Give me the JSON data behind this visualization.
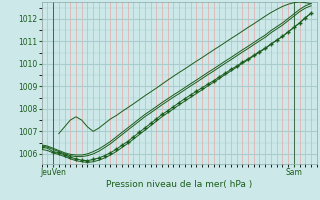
{
  "title": "Pression niveau de la mer( hPa )",
  "xlabel_left": "JeuVen",
  "xlabel_right": "Sam",
  "ylabel_ticks": [
    1006,
    1007,
    1008,
    1009,
    1010,
    1011,
    1012
  ],
  "ylim": [
    1005.55,
    1012.75
  ],
  "bg_color": "#cce8e8",
  "grid_color_major": "#aacccc",
  "grid_color_minor": "#e8aaaa",
  "line_color": "#1a5c1a",
  "marker_color": "#1a5c1a",
  "xlim": [
    0,
    48
  ],
  "xline_jeuven": 2,
  "xline_sam": 44,
  "line1_x": [
    0,
    1,
    2,
    3,
    4,
    5,
    6,
    7,
    8,
    9,
    10,
    11,
    12,
    13,
    14,
    15,
    16,
    17,
    18,
    19,
    20,
    21,
    22,
    23,
    24,
    25,
    26,
    27,
    28,
    29,
    30,
    31,
    32,
    33,
    34,
    35,
    36,
    37,
    38,
    39,
    40,
    41,
    42,
    43,
    44,
    45,
    46,
    47
  ],
  "line1_y": [
    1006.3,
    1006.25,
    1006.1,
    1006.05,
    1005.95,
    1005.85,
    1005.78,
    1005.72,
    1005.7,
    1005.75,
    1005.82,
    1005.92,
    1006.05,
    1006.2,
    1006.38,
    1006.55,
    1006.75,
    1006.95,
    1007.15,
    1007.35,
    1007.55,
    1007.75,
    1007.92,
    1008.1,
    1008.28,
    1008.46,
    1008.62,
    1008.78,
    1008.94,
    1009.1,
    1009.25,
    1009.42,
    1009.58,
    1009.75,
    1009.9,
    1010.07,
    1010.22,
    1010.38,
    1010.55,
    1010.7,
    1010.88,
    1011.05,
    1011.22,
    1011.42,
    1011.62,
    1011.82,
    1012.05,
    1012.25
  ],
  "line2_x": [
    0,
    1,
    2,
    3,
    4,
    5,
    6,
    7,
    8,
    9,
    10,
    11,
    12,
    13,
    14,
    15,
    16,
    17,
    18,
    19,
    20,
    21,
    22,
    23,
    24,
    25,
    26,
    27,
    28,
    29,
    30,
    31,
    32,
    33,
    34,
    35,
    36,
    37,
    38,
    39,
    40,
    41,
    42,
    43,
    44,
    45,
    46,
    47
  ],
  "line2_y": [
    1006.2,
    1006.15,
    1006.05,
    1005.97,
    1005.88,
    1005.78,
    1005.7,
    1005.65,
    1005.62,
    1005.65,
    1005.72,
    1005.82,
    1005.95,
    1006.1,
    1006.28,
    1006.46,
    1006.65,
    1006.85,
    1007.05,
    1007.25,
    1007.45,
    1007.65,
    1007.83,
    1008.0,
    1008.18,
    1008.35,
    1008.52,
    1008.68,
    1008.85,
    1009.02,
    1009.18,
    1009.35,
    1009.52,
    1009.68,
    1009.85,
    1010.02,
    1010.18,
    1010.35,
    1010.52,
    1010.68,
    1010.87,
    1011.05,
    1011.22,
    1011.42,
    1011.62,
    1011.82,
    1012.05,
    1012.25
  ],
  "line3_x": [
    0,
    1,
    2,
    3,
    4,
    5,
    6,
    7,
    8,
    9,
    10,
    11,
    12,
    13,
    14,
    15,
    16,
    17,
    18,
    19,
    20,
    21,
    22,
    23,
    24,
    25,
    26,
    27,
    28,
    29,
    30,
    31,
    32,
    33,
    34,
    35,
    36,
    37,
    38,
    39,
    40,
    41,
    42,
    43,
    44,
    45,
    46,
    47
  ],
  "line3_y": [
    1006.4,
    1006.35,
    1006.25,
    1006.15,
    1006.05,
    1005.98,
    1005.95,
    1005.95,
    1006.0,
    1006.1,
    1006.22,
    1006.38,
    1006.55,
    1006.75,
    1006.95,
    1007.15,
    1007.35,
    1007.55,
    1007.75,
    1007.92,
    1008.1,
    1008.28,
    1008.45,
    1008.62,
    1008.78,
    1008.95,
    1009.12,
    1009.28,
    1009.45,
    1009.62,
    1009.78,
    1009.95,
    1010.12,
    1010.28,
    1010.45,
    1010.62,
    1010.78,
    1010.95,
    1011.12,
    1011.28,
    1011.48,
    1011.65,
    1011.82,
    1012.02,
    1012.22,
    1012.42,
    1012.58,
    1012.68
  ],
  "line4_x": [
    3,
    4,
    5,
    6,
    7,
    8,
    9,
    10,
    11,
    12,
    13,
    14,
    15,
    16,
    17,
    18,
    19,
    20,
    21,
    22,
    23,
    24,
    25,
    26,
    27,
    28,
    29,
    30,
    31,
    32,
    33,
    34,
    35,
    36,
    37,
    38,
    39,
    40,
    41,
    42,
    43,
    44,
    45,
    46,
    47
  ],
  "line4_y": [
    1006.9,
    1007.2,
    1007.5,
    1007.65,
    1007.5,
    1007.2,
    1007.0,
    1007.15,
    1007.35,
    1007.55,
    1007.7,
    1007.88,
    1008.05,
    1008.22,
    1008.4,
    1008.58,
    1008.75,
    1008.92,
    1009.1,
    1009.28,
    1009.45,
    1009.62,
    1009.78,
    1009.95,
    1010.12,
    1010.28,
    1010.45,
    1010.62,
    1010.78,
    1010.95,
    1011.12,
    1011.28,
    1011.45,
    1011.62,
    1011.78,
    1011.95,
    1012.12,
    1012.28,
    1012.42,
    1012.55,
    1012.65,
    1012.72,
    1012.75,
    1012.72,
    1012.68
  ],
  "line5_x": [
    0,
    1,
    2,
    3,
    4,
    5,
    6,
    7,
    8,
    9,
    10,
    11,
    12,
    13,
    14,
    15,
    16,
    17,
    18,
    19,
    20,
    21,
    22,
    23,
    24,
    25,
    26,
    27,
    28,
    29,
    30,
    31,
    32,
    33,
    34,
    35,
    36,
    37,
    38,
    39,
    40,
    41,
    42,
    43,
    44,
    45,
    46,
    47
  ],
  "line5_y": [
    1006.35,
    1006.3,
    1006.2,
    1006.1,
    1006.0,
    1005.92,
    1005.88,
    1005.88,
    1005.92,
    1006.0,
    1006.12,
    1006.28,
    1006.45,
    1006.65,
    1006.85,
    1007.05,
    1007.25,
    1007.45,
    1007.65,
    1007.82,
    1008.0,
    1008.18,
    1008.35,
    1008.52,
    1008.68,
    1008.85,
    1009.02,
    1009.18,
    1009.35,
    1009.52,
    1009.68,
    1009.85,
    1010.02,
    1010.18,
    1010.35,
    1010.52,
    1010.68,
    1010.85,
    1011.02,
    1011.18,
    1011.38,
    1011.55,
    1011.72,
    1011.92,
    1012.12,
    1012.32,
    1012.48,
    1012.58
  ],
  "markers_x": [
    0,
    2,
    3,
    4,
    5,
    6,
    7,
    8,
    9,
    10,
    11,
    12,
    13,
    14,
    15,
    16,
    17,
    18,
    19,
    20,
    21,
    22,
    23,
    24,
    25,
    26,
    27,
    28,
    29,
    30,
    31,
    32,
    33,
    34,
    35,
    36,
    37,
    38,
    39,
    40,
    41,
    42,
    43,
    44,
    45,
    46,
    47
  ],
  "markers_y": [
    1006.3,
    1006.1,
    1006.05,
    1005.95,
    1005.85,
    1005.78,
    1005.72,
    1005.7,
    1005.75,
    1005.82,
    1005.92,
    1006.05,
    1006.2,
    1006.38,
    1006.55,
    1006.75,
    1006.95,
    1007.15,
    1007.35,
    1007.55,
    1007.75,
    1007.92,
    1008.1,
    1008.28,
    1008.46,
    1008.62,
    1008.78,
    1008.94,
    1009.1,
    1009.25,
    1009.42,
    1009.58,
    1009.75,
    1009.9,
    1010.07,
    1010.22,
    1010.38,
    1010.55,
    1010.7,
    1010.88,
    1011.05,
    1011.22,
    1011.42,
    1011.62,
    1011.82,
    1012.05,
    1012.25
  ]
}
